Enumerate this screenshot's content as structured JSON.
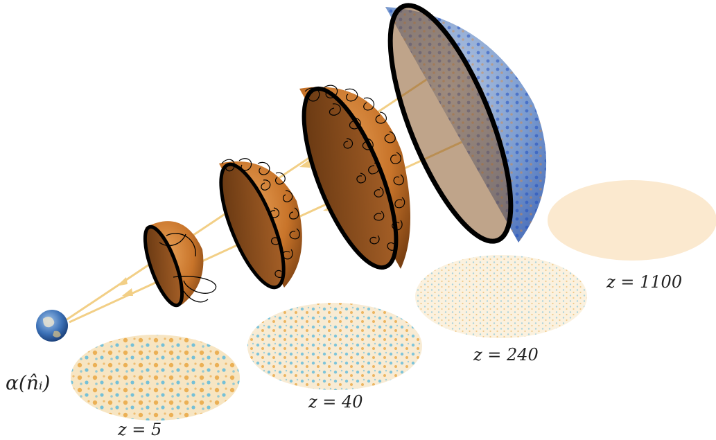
{
  "labels": {
    "alpha": "α(n̂ᵢ)",
    "z5": "z = 5",
    "z40": "z = 40",
    "z240": "z = 240",
    "z1100": "z = 1100"
  },
  "colors": {
    "ray": "#f2cf86",
    "shell_orange": "#c8742a",
    "shell_dark": "#6e3a10",
    "cmb_blue": "#4f7fc8",
    "map_cream": "#fbefd6",
    "map_blue": "#55b6dc",
    "map_orange": "#e8a23a",
    "earth_blue": "#3a6fb5"
  },
  "icons": {
    "observer": "earth-icon"
  }
}
